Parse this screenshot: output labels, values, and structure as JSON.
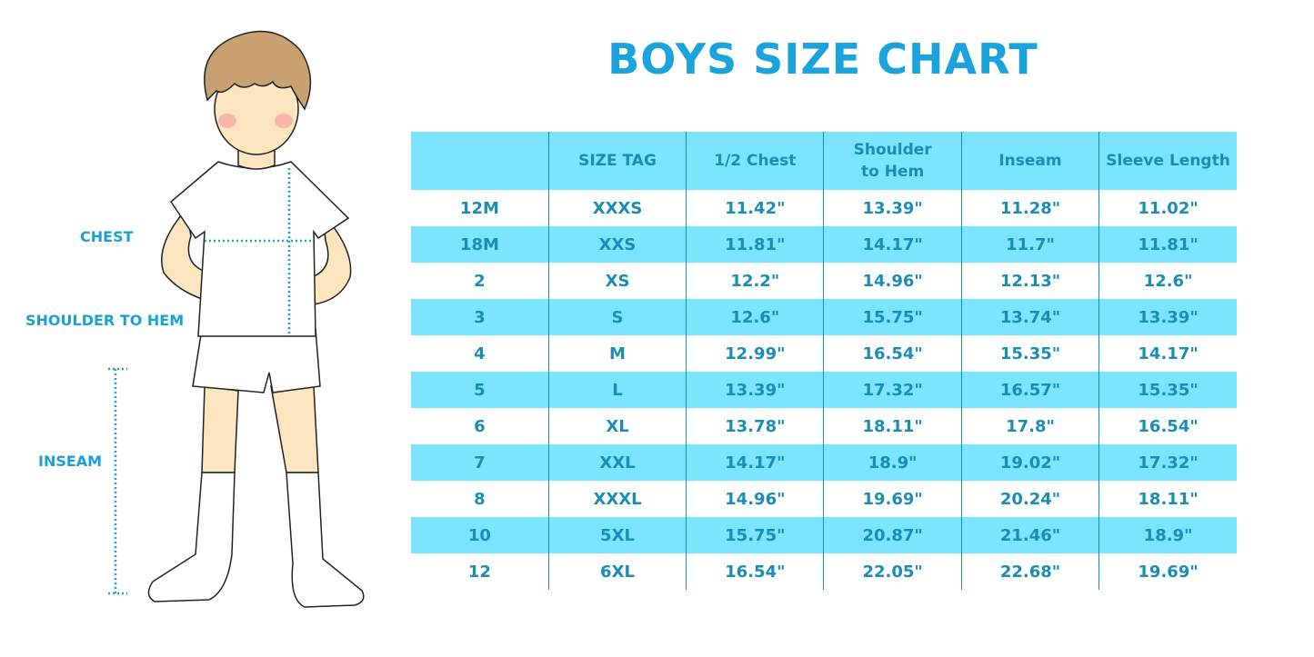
{
  "title": "BOYS SIZE CHART",
  "measure_labels": {
    "chest": "CHEST",
    "shoulder_to_hem": "SHOULDER TO HEM",
    "inseam": "INSEAM"
  },
  "colors": {
    "title": "#1aa3dc",
    "table_text": "#1a8db5",
    "band": "#7ae5fd"
  },
  "table": {
    "headers": [
      "",
      "SIZE TAG",
      "1/2 Chest",
      "Shoulder to Hem",
      "Inseam",
      "Sleeve Length"
    ],
    "rows": [
      [
        "12M",
        "XXXS",
        "11.42\"",
        "13.39\"",
        "11.28\"",
        "11.02\""
      ],
      [
        "18M",
        "XXS",
        "11.81\"",
        "14.17\"",
        "11.7\"",
        "11.81\""
      ],
      [
        "2",
        "XS",
        "12.2\"",
        "14.96\"",
        "12.13\"",
        "12.6\""
      ],
      [
        "3",
        "S",
        "12.6\"",
        "15.75\"",
        "13.74\"",
        "13.39\""
      ],
      [
        "4",
        "M",
        "12.99\"",
        "16.54\"",
        "15.35\"",
        "14.17\""
      ],
      [
        "5",
        "L",
        "13.39\"",
        "17.32\"",
        "16.57\"",
        "15.35\""
      ],
      [
        "6",
        "XL",
        "13.78\"",
        "18.11\"",
        "17.8\"",
        "16.54\""
      ],
      [
        "7",
        "XXL",
        "14.17\"",
        "18.9\"",
        "19.02\"",
        "17.32\""
      ],
      [
        "8",
        "XXXL",
        "14.96\"",
        "19.69\"",
        "20.24\"",
        "18.11\""
      ],
      [
        "10",
        "5XL",
        "15.75\"",
        "20.87\"",
        "21.46\"",
        "18.9\""
      ],
      [
        "12",
        "6XL",
        "16.54\"",
        "22.05\"",
        "22.68\"",
        "19.69\""
      ]
    ]
  }
}
